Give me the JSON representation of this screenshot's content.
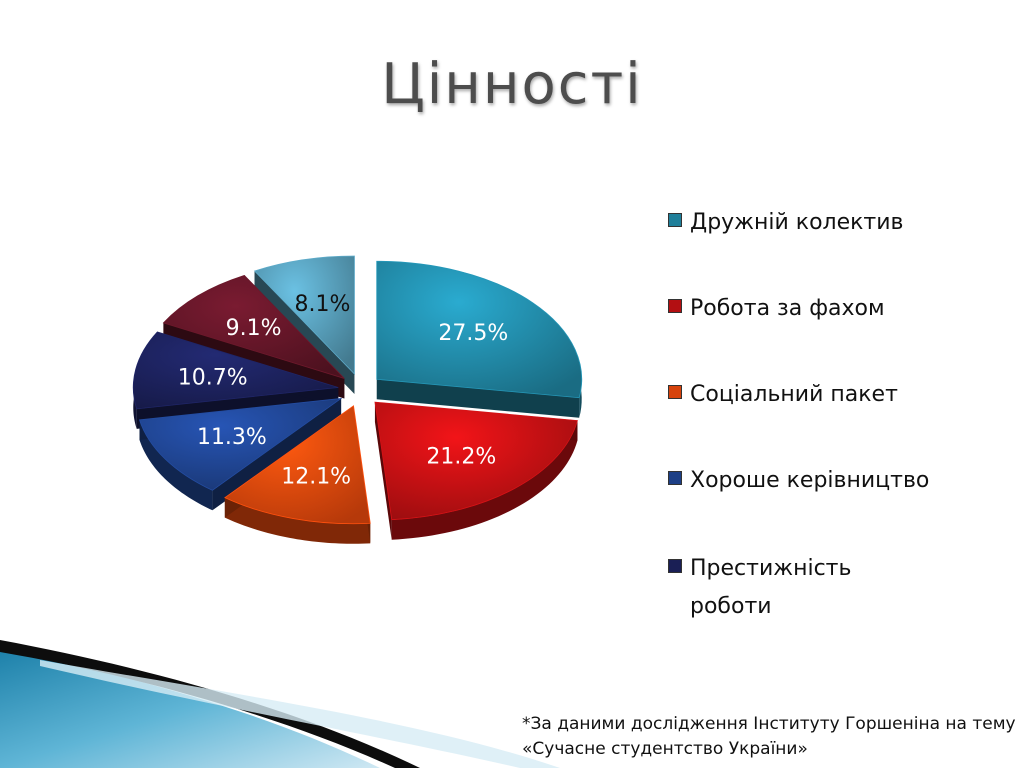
{
  "title": "Цінності",
  "chart_data": {
    "type": "pie",
    "categories": [
      "Дружній колектив",
      "Робота за фахом",
      "Соціальний пакет",
      "Хороше керівництво",
      "Престижність роботи",
      "",
      ""
    ],
    "values": [
      27.5,
      21.2,
      12.1,
      11.3,
      10.7,
      9.1,
      8.1
    ],
    "data_labels": [
      "27.5%",
      "21.2%",
      "12.1%",
      "11.3%",
      "10.7%",
      "9.1%",
      "8.1%"
    ],
    "colors": [
      "#1f7f9a",
      "#b30f12",
      "#d6430c",
      "#1d3f86",
      "#1a1f55",
      "#5a1424",
      "#4f8fa8"
    ],
    "legend_position": "right",
    "exploded": true,
    "style": "3d"
  },
  "legend": [
    {
      "label": "Дружній колектив",
      "color": "#1f7f9a"
    },
    {
      "label": "Робота за фахом",
      "color": "#b30f12"
    },
    {
      "label": "Соціальний пакет",
      "color": "#d6430c"
    },
    {
      "label": "Хороше керівництво",
      "color": "#1d3f86"
    },
    {
      "label": "Престижність роботи",
      "color": "#1a1f55"
    }
  ],
  "footnote": "*За даними дослідження Інституту Горшеніна на тему «Сучасне студентство України»"
}
